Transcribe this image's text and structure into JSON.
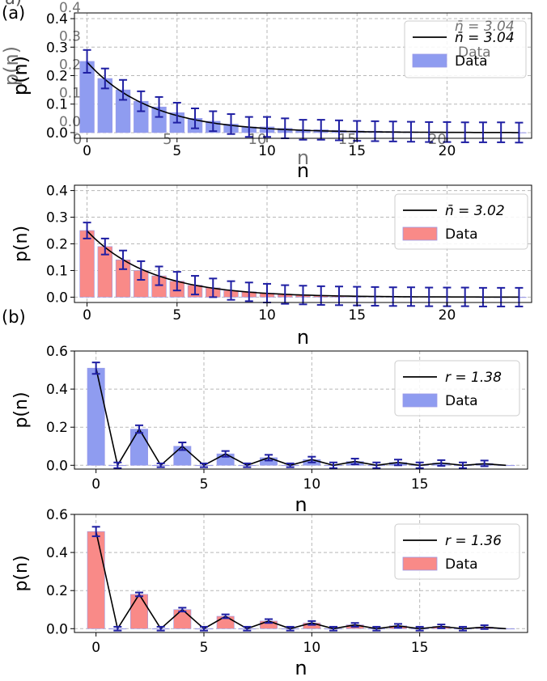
{
  "panel_labels": {
    "a": "(a)",
    "a_ghost": "a)",
    "b": "(b)"
  },
  "colors": {
    "blue_bar": "#8f9cf0",
    "red_bar": "#f98a88",
    "error": "#1f1fa3",
    "fit": "#000000",
    "grid": "#b8b8b8"
  },
  "chart_data": [
    {
      "id": "a-top",
      "type": "bar",
      "xlabel": "n",
      "ylabel": "p(n)",
      "xlim": [
        -0.7,
        24.7
      ],
      "ylim": [
        -0.02,
        0.42
      ],
      "xticks": [
        0,
        5,
        10,
        15,
        20
      ],
      "yticks": [
        0.0,
        0.1,
        0.2,
        0.3,
        0.4
      ],
      "x": [
        0,
        1,
        2,
        3,
        4,
        5,
        6,
        7,
        8,
        9,
        10,
        11,
        12,
        13,
        14,
        15,
        16,
        17,
        18,
        19,
        20,
        21,
        22,
        23,
        24
      ],
      "values": [
        0.25,
        0.19,
        0.15,
        0.11,
        0.09,
        0.07,
        0.05,
        0.04,
        0.03,
        0.02,
        0.02,
        0.015,
        0.01,
        0.01,
        0.008,
        0.006,
        0.005,
        0.004,
        0.003,
        0.002,
        0.002,
        0.001,
        0.001,
        0.001,
        0.0
      ],
      "errors": [
        0.04,
        0.035,
        0.035,
        0.035,
        0.035,
        0.035,
        0.035,
        0.035,
        0.035,
        0.035,
        0.035,
        0.035,
        0.035,
        0.035,
        0.035,
        0.035,
        0.035,
        0.035,
        0.035,
        0.035,
        0.035,
        0.035,
        0.035,
        0.035,
        0.035
      ],
      "fit_nbar": 3.04,
      "legend_fit": "n̄ = 3.04",
      "legend_data": "Data",
      "bar_color": "#8f9cf0"
    },
    {
      "id": "a-bottom",
      "type": "bar",
      "xlabel": "n",
      "ylabel": "p(n)",
      "xlim": [
        -0.7,
        24.7
      ],
      "ylim": [
        -0.02,
        0.42
      ],
      "xticks": [
        0,
        5,
        10,
        15,
        20
      ],
      "yticks": [
        0.0,
        0.1,
        0.2,
        0.3,
        0.4
      ],
      "x": [
        0,
        1,
        2,
        3,
        4,
        5,
        6,
        7,
        8,
        9,
        10,
        11,
        12,
        13,
        14,
        15,
        16,
        17,
        18,
        19,
        20,
        21,
        22,
        23,
        24
      ],
      "values": [
        0.25,
        0.19,
        0.14,
        0.1,
        0.08,
        0.06,
        0.045,
        0.035,
        0.025,
        0.02,
        0.015,
        0.01,
        0.008,
        0.006,
        0.005,
        0.004,
        0.003,
        0.002,
        0.002,
        0.001,
        0.001,
        0.001,
        0.0,
        0.0,
        0.0
      ],
      "errors": [
        0.03,
        0.03,
        0.035,
        0.035,
        0.035,
        0.035,
        0.035,
        0.035,
        0.035,
        0.035,
        0.035,
        0.035,
        0.035,
        0.035,
        0.035,
        0.035,
        0.035,
        0.035,
        0.035,
        0.035,
        0.035,
        0.035,
        0.035,
        0.035,
        0.035
      ],
      "fit_nbar": 3.02,
      "legend_fit": "n̄ = 3.02",
      "legend_data": "Data",
      "bar_color": "#f98a88"
    },
    {
      "id": "b-top",
      "type": "bar",
      "xlabel": "n",
      "ylabel": "p(n)",
      "xlim": [
        -1.0,
        20.0
      ],
      "ylim": [
        -0.02,
        0.6
      ],
      "xticks": [
        0,
        5,
        10,
        15
      ],
      "yticks": [
        0.0,
        0.2,
        0.4,
        0.6
      ],
      "x": [
        0,
        1,
        2,
        3,
        4,
        5,
        6,
        7,
        8,
        9,
        10,
        11,
        12,
        13,
        14,
        15,
        16,
        17,
        18,
        19
      ],
      "values": [
        0.51,
        0.0,
        0.19,
        0.0,
        0.1,
        0.0,
        0.06,
        0.0,
        0.04,
        0.0,
        0.03,
        0.0,
        0.02,
        0.0,
        0.015,
        0.0,
        0.012,
        0.0,
        0.01,
        0.0
      ],
      "errors": [
        0.03,
        0.015,
        0.02,
        0.01,
        0.02,
        0.01,
        0.015,
        0.01,
        0.015,
        0.01,
        0.015,
        0.015,
        0.015,
        0.015,
        0.015,
        0.015,
        0.015,
        0.015,
        0.015,
        0.0
      ],
      "fit": [
        0.51,
        0.0,
        0.19,
        0.0,
        0.1,
        0.0,
        0.06,
        0.0,
        0.04,
        0.0,
        0.03,
        0.0,
        0.02,
        0.0,
        0.015,
        0.0,
        0.012,
        0.0,
        0.008,
        0.0
      ],
      "legend_fit": "r = 1.38",
      "legend_data": "Data",
      "bar_color": "#8f9cf0"
    },
    {
      "id": "b-bottom",
      "type": "bar",
      "xlabel": "n",
      "ylabel": "p(n)",
      "xlim": [
        -1.0,
        20.0
      ],
      "ylim": [
        -0.02,
        0.6
      ],
      "xticks": [
        0,
        5,
        10,
        15
      ],
      "yticks": [
        0.0,
        0.2,
        0.4,
        0.6
      ],
      "x": [
        0,
        1,
        2,
        3,
        4,
        5,
        6,
        7,
        8,
        9,
        10,
        11,
        12,
        13,
        14,
        15,
        16,
        17,
        18,
        19
      ],
      "values": [
        0.51,
        0.0,
        0.18,
        0.0,
        0.1,
        0.0,
        0.065,
        0.0,
        0.04,
        0.0,
        0.03,
        0.0,
        0.02,
        0.0,
        0.015,
        0.0,
        0.012,
        0.0,
        0.008,
        0.0
      ],
      "errors": [
        0.025,
        0.01,
        0.01,
        0.01,
        0.01,
        0.01,
        0.01,
        0.01,
        0.01,
        0.01,
        0.01,
        0.01,
        0.01,
        0.01,
        0.01,
        0.01,
        0.01,
        0.01,
        0.01,
        0.0
      ],
      "fit": [
        0.51,
        0.0,
        0.18,
        0.0,
        0.1,
        0.0,
        0.065,
        0.0,
        0.04,
        0.0,
        0.03,
        0.0,
        0.02,
        0.0,
        0.015,
        0.0,
        0.012,
        0.0,
        0.008,
        0.0
      ],
      "legend_fit": "r = 1.36",
      "legend_data": "Data",
      "bar_color": "#f98a88"
    }
  ]
}
